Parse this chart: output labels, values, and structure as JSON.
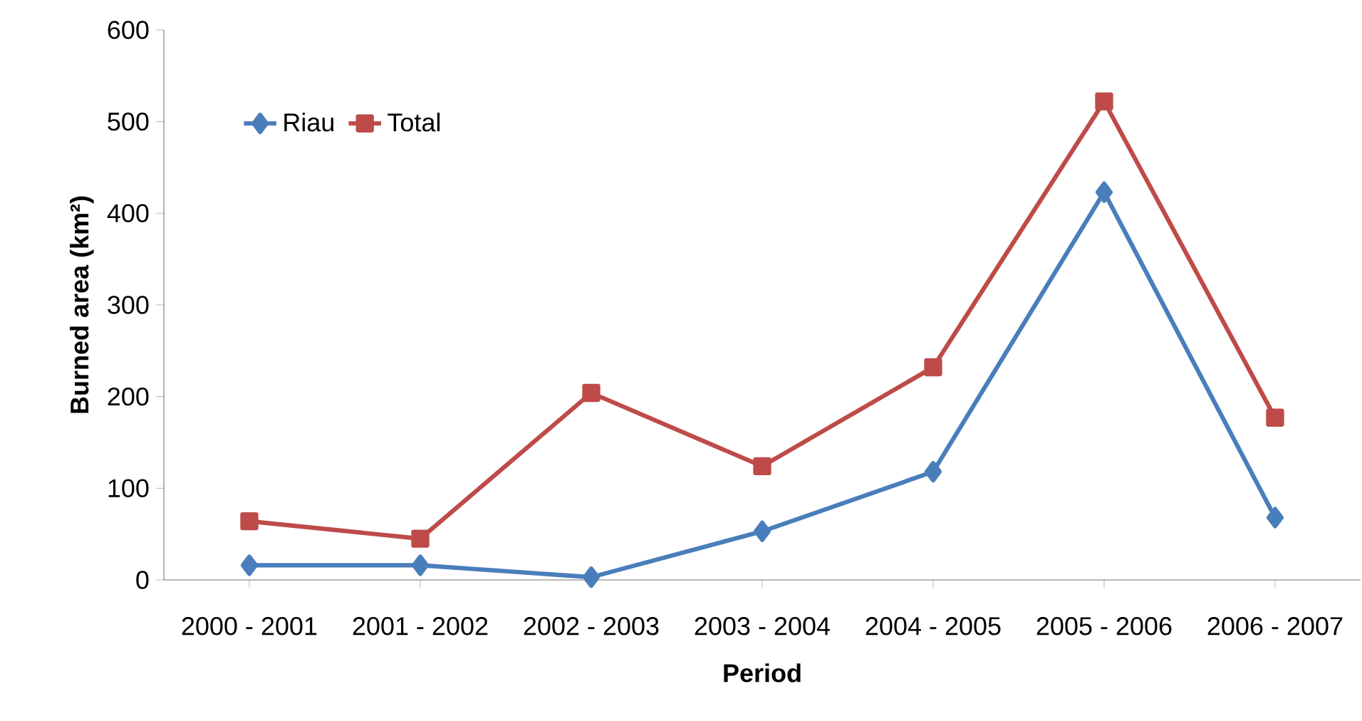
{
  "chart_data": {
    "type": "line",
    "xlabel": "Period",
    "ylabel": "Burned area (km²)",
    "categories": [
      "2000 - 2001",
      "2001 - 2002",
      "2002 - 2003",
      "2003 - 2004",
      "2004 - 2005",
      "2005 - 2006",
      "2006 - 2007"
    ],
    "series": [
      {
        "name": "Riau",
        "color": "#4a7ebb",
        "marker": "diamond",
        "values": [
          16,
          16,
          3,
          53,
          118,
          423,
          68
        ]
      },
      {
        "name": "Total",
        "color": "#be4b48",
        "marker": "square",
        "values": [
          64,
          45,
          204,
          124,
          232,
          522,
          177
        ]
      }
    ],
    "ylim": [
      0,
      600
    ],
    "yticks": [
      0,
      100,
      200,
      300,
      400,
      500,
      600
    ],
    "grid": false,
    "legend": "left",
    "line_style": "solid"
  }
}
